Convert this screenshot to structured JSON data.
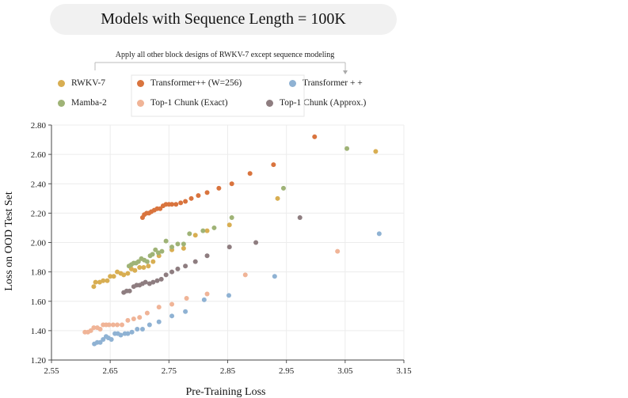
{
  "chart_data": {
    "type": "scatter",
    "title": "Models with Sequence Length = 100K",
    "subtitle": "Apply all other block designs of RWKV-7 except sequence modeling",
    "xlabel": "Pre-Training Loss",
    "ylabel": "Loss on OOD Test Set",
    "xlim": [
      2.55,
      3.15
    ],
    "ylim": [
      1.2,
      2.8
    ],
    "xticks": [
      "2.55",
      "2.65",
      "2.75",
      "2.85",
      "2.95",
      "3.05",
      "3.15"
    ],
    "yticks": [
      "1.20",
      "1.40",
      "1.60",
      "1.80",
      "2.00",
      "2.20",
      "2.40",
      "2.60",
      "2.80"
    ],
    "grid": true,
    "series": [
      {
        "name": "RWKV-7",
        "color": "#d8ae52",
        "points": [
          [
            2.622,
            1.7
          ],
          [
            2.625,
            1.73
          ],
          [
            2.632,
            1.73
          ],
          [
            2.638,
            1.74
          ],
          [
            2.645,
            1.74
          ],
          [
            2.65,
            1.77
          ],
          [
            2.656,
            1.77
          ],
          [
            2.662,
            1.8
          ],
          [
            2.668,
            1.79
          ],
          [
            2.673,
            1.78
          ],
          [
            2.68,
            1.79
          ],
          [
            2.686,
            1.82
          ],
          [
            2.692,
            1.81
          ],
          [
            2.7,
            1.83
          ],
          [
            2.707,
            1.83
          ],
          [
            2.715,
            1.84
          ],
          [
            2.723,
            1.87
          ],
          [
            2.733,
            1.91
          ],
          [
            2.755,
            1.95
          ],
          [
            2.775,
            1.96
          ],
          [
            2.795,
            2.05
          ],
          [
            2.815,
            2.08
          ],
          [
            2.853,
            2.12
          ],
          [
            2.935,
            2.3
          ],
          [
            3.102,
            2.62
          ]
        ]
      },
      {
        "name": "Transformer++ (W=256)",
        "color": "#d9743e",
        "points": [
          [
            2.705,
            2.17
          ],
          [
            2.708,
            2.19
          ],
          [
            2.712,
            2.2
          ],
          [
            2.716,
            2.2
          ],
          [
            2.72,
            2.21
          ],
          [
            2.725,
            2.22
          ],
          [
            2.73,
            2.23
          ],
          [
            2.735,
            2.23
          ],
          [
            2.74,
            2.25
          ],
          [
            2.745,
            2.26
          ],
          [
            2.75,
            2.26
          ],
          [
            2.755,
            2.26
          ],
          [
            2.762,
            2.26
          ],
          [
            2.77,
            2.27
          ],
          [
            2.778,
            2.28
          ],
          [
            2.788,
            2.3
          ],
          [
            2.8,
            2.32
          ],
          [
            2.815,
            2.34
          ],
          [
            2.835,
            2.37
          ],
          [
            2.857,
            2.4
          ],
          [
            2.888,
            2.47
          ],
          [
            2.928,
            2.53
          ],
          [
            2.998,
            2.72
          ]
        ]
      },
      {
        "name": "Transformer + +",
        "color": "#8fb2d3",
        "points": [
          [
            2.623,
            1.31
          ],
          [
            2.628,
            1.32
          ],
          [
            2.633,
            1.32
          ],
          [
            2.638,
            1.34
          ],
          [
            2.643,
            1.36
          ],
          [
            2.647,
            1.35
          ],
          [
            2.652,
            1.34
          ],
          [
            2.658,
            1.38
          ],
          [
            2.663,
            1.38
          ],
          [
            2.668,
            1.37
          ],
          [
            2.675,
            1.38
          ],
          [
            2.68,
            1.38
          ],
          [
            2.687,
            1.39
          ],
          [
            2.696,
            1.41
          ],
          [
            2.705,
            1.41
          ],
          [
            2.717,
            1.44
          ],
          [
            2.733,
            1.46
          ],
          [
            2.755,
            1.5
          ],
          [
            2.778,
            1.53
          ],
          [
            2.81,
            1.61
          ],
          [
            2.852,
            1.64
          ],
          [
            2.93,
            1.77
          ],
          [
            3.108,
            2.06
          ]
        ]
      },
      {
        "name": "Mamba-2",
        "color": "#9fb376",
        "points": [
          [
            2.682,
            1.84
          ],
          [
            2.686,
            1.85
          ],
          [
            2.69,
            1.86
          ],
          [
            2.694,
            1.86
          ],
          [
            2.698,
            1.87
          ],
          [
            2.703,
            1.89
          ],
          [
            2.708,
            1.88
          ],
          [
            2.713,
            1.87
          ],
          [
            2.718,
            1.91
          ],
          [
            2.722,
            1.92
          ],
          [
            2.727,
            1.95
          ],
          [
            2.732,
            1.93
          ],
          [
            2.738,
            1.94
          ],
          [
            2.745,
            2.01
          ],
          [
            2.755,
            1.97
          ],
          [
            2.765,
            1.99
          ],
          [
            2.775,
            1.99
          ],
          [
            2.785,
            2.06
          ],
          [
            2.808,
            2.08
          ],
          [
            2.827,
            2.1
          ],
          [
            2.857,
            2.17
          ],
          [
            2.945,
            2.37
          ],
          [
            3.053,
            2.64
          ]
        ]
      },
      {
        "name": "Top-1 Chunk (Exact)",
        "color": "#f0b497",
        "points": [
          [
            2.607,
            1.39
          ],
          [
            2.612,
            1.39
          ],
          [
            2.617,
            1.4
          ],
          [
            2.622,
            1.42
          ],
          [
            2.628,
            1.42
          ],
          [
            2.633,
            1.41
          ],
          [
            2.638,
            1.44
          ],
          [
            2.643,
            1.44
          ],
          [
            2.648,
            1.44
          ],
          [
            2.655,
            1.44
          ],
          [
            2.662,
            1.44
          ],
          [
            2.67,
            1.44
          ],
          [
            2.68,
            1.47
          ],
          [
            2.69,
            1.48
          ],
          [
            2.7,
            1.49
          ],
          [
            2.713,
            1.52
          ],
          [
            2.733,
            1.56
          ],
          [
            2.755,
            1.58
          ],
          [
            2.78,
            1.62
          ],
          [
            2.815,
            1.65
          ],
          [
            2.88,
            1.78
          ],
          [
            3.037,
            1.94
          ]
        ]
      },
      {
        "name": "Top-1 Chunk (Approx.)",
        "color": "#8e7d80",
        "points": [
          [
            2.673,
            1.66
          ],
          [
            2.678,
            1.67
          ],
          [
            2.683,
            1.67
          ],
          [
            2.69,
            1.7
          ],
          [
            2.695,
            1.71
          ],
          [
            2.7,
            1.71
          ],
          [
            2.705,
            1.72
          ],
          [
            2.71,
            1.73
          ],
          [
            2.717,
            1.72
          ],
          [
            2.723,
            1.73
          ],
          [
            2.73,
            1.74
          ],
          [
            2.737,
            1.75
          ],
          [
            2.745,
            1.78
          ],
          [
            2.755,
            1.8
          ],
          [
            2.765,
            1.82
          ],
          [
            2.778,
            1.84
          ],
          [
            2.795,
            1.87
          ],
          [
            2.815,
            1.91
          ],
          [
            2.853,
            1.97
          ],
          [
            2.898,
            2.0
          ],
          [
            2.973,
            2.17
          ]
        ]
      }
    ]
  }
}
